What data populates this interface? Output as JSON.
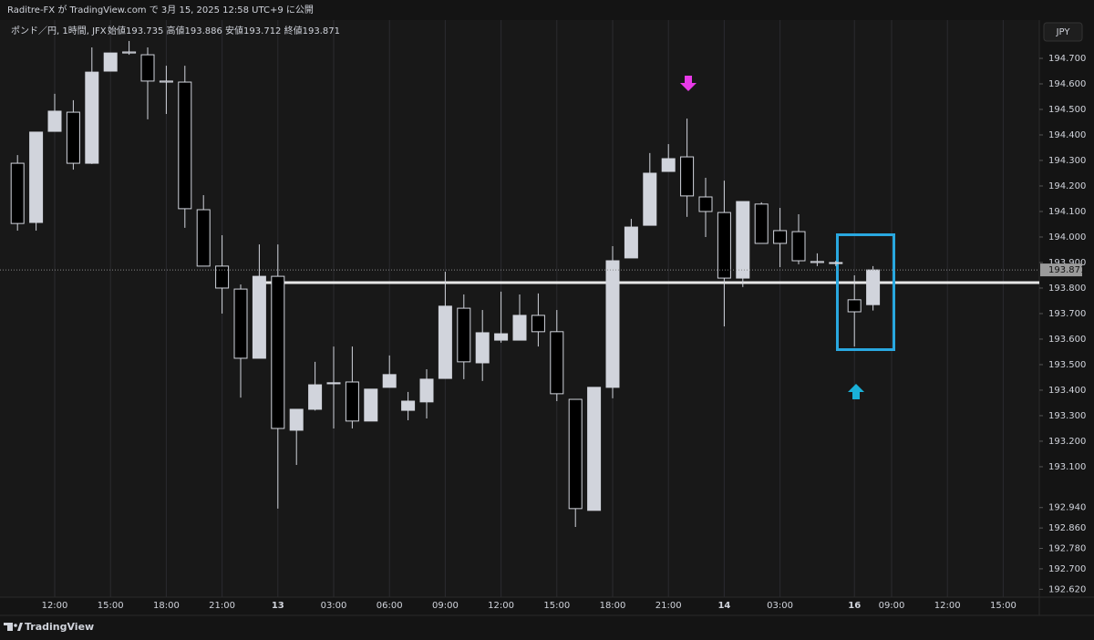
{
  "header": {
    "publisher": "Raditre-FX が TradingView.com で 3月 15, 2025 12:58 UTC+9 に公開"
  },
  "chart_data": {
    "type": "candlestick",
    "title": "ポンド／円, 1時間, JFX",
    "legend_ohlc": "始値193.735 高値193.886 安値193.712 終値193.871",
    "currency": "JPY",
    "up_color": "#d1d4dc",
    "down_color": "#000000",
    "categories": [
      null,
      null,
      "12:00",
      null,
      null,
      "15:00",
      null,
      null,
      "18:00",
      null,
      null,
      "21:00",
      null,
      null,
      "13",
      null,
      null,
      "03:00",
      null,
      null,
      "06:00",
      null,
      null,
      "09:00",
      null,
      null,
      "12:00",
      null,
      null,
      "15:00",
      null,
      null,
      "18:00",
      null,
      null,
      "21:00",
      null,
      null,
      "14",
      null,
      null,
      "03:00",
      null,
      null,
      null,
      "16",
      null,
      "09:00",
      null,
      null,
      "12:00",
      null,
      null,
      "15:00"
    ],
    "open": [
      194.289,
      194.057,
      194.414,
      194.489,
      194.289,
      194.65,
      194.725,
      194.714,
      194.611,
      194.607,
      194.107,
      193.886,
      193.796,
      193.525,
      193.846,
      193.243,
      193.325,
      193.425,
      193.432,
      193.279,
      193.411,
      193.321,
      193.354,
      193.446,
      193.721,
      193.507,
      193.596,
      193.596,
      193.693,
      193.629,
      193.364,
      192.929,
      193.411,
      193.918,
      194.046,
      194.257,
      194.314,
      194.157,
      194.096,
      193.839,
      194.129,
      194.025,
      194.021,
      193.904,
      193.896,
      193.754,
      193.735,
      null,
      null,
      null,
      null,
      null,
      null,
      null
    ],
    "high": [
      194.321,
      194.411,
      194.561,
      194.536,
      194.743,
      194.721,
      194.768,
      194.743,
      194.671,
      194.671,
      194.164,
      194.007,
      193.814,
      193.971,
      193.971,
      193.325,
      193.511,
      193.571,
      193.571,
      193.404,
      193.536,
      193.393,
      193.482,
      193.864,
      193.775,
      193.714,
      193.786,
      193.775,
      193.779,
      193.714,
      193.364,
      193.411,
      193.964,
      194.071,
      194.329,
      194.364,
      194.464,
      194.232,
      194.221,
      194.139,
      194.136,
      194.114,
      194.089,
      193.936,
      193.907,
      193.85,
      193.886,
      null,
      null,
      null,
      null,
      null,
      null,
      null
    ],
    "low": [
      194.025,
      194.025,
      194.414,
      194.264,
      194.286,
      194.65,
      194.714,
      194.461,
      194.482,
      194.036,
      193.886,
      193.7,
      193.371,
      193.525,
      192.936,
      193.107,
      193.32,
      193.25,
      193.25,
      193.279,
      193.411,
      193.282,
      193.289,
      193.446,
      193.443,
      193.436,
      193.586,
      193.596,
      193.571,
      193.357,
      192.864,
      192.929,
      193.368,
      193.918,
      194.046,
      194.257,
      194.079,
      194.0,
      193.65,
      193.804,
      193.975,
      193.882,
      193.893,
      193.886,
      193.886,
      193.571,
      193.712,
      null,
      null,
      null,
      null,
      null,
      null,
      null
    ],
    "close": [
      194.053,
      194.411,
      194.493,
      194.289,
      194.646,
      194.721,
      194.721,
      194.611,
      194.607,
      194.111,
      193.886,
      193.8,
      193.525,
      193.846,
      193.25,
      193.325,
      193.421,
      193.429,
      193.279,
      193.404,
      193.461,
      193.357,
      193.443,
      193.729,
      193.511,
      193.625,
      193.621,
      193.693,
      193.629,
      193.386,
      192.936,
      193.411,
      193.907,
      194.039,
      194.25,
      194.307,
      194.161,
      194.1,
      193.839,
      194.139,
      193.975,
      193.975,
      193.907,
      193.9,
      193.9,
      193.707,
      193.871,
      null,
      null,
      null,
      null,
      null,
      null,
      null
    ],
    "ylim": [
      192.589,
      194.85
    ],
    "yticks": [
      {
        "value": 194.7,
        "label": "194.700"
      },
      {
        "value": 194.6,
        "label": "194.600"
      },
      {
        "value": 194.5,
        "label": "194.500"
      },
      {
        "value": 194.4,
        "label": "194.400"
      },
      {
        "value": 194.3,
        "label": "194.300"
      },
      {
        "value": 194.2,
        "label": "194.200"
      },
      {
        "value": 194.1,
        "label": "194.100"
      },
      {
        "value": 194.0,
        "label": "194.000"
      },
      {
        "value": 193.9,
        "label": "193.900"
      },
      {
        "value": 193.8,
        "label": "193.800"
      },
      {
        "value": 193.7,
        "label": "193.700"
      },
      {
        "value": 193.6,
        "label": "193.600"
      },
      {
        "value": 193.5,
        "label": "193.500"
      },
      {
        "value": 193.4,
        "label": "193.400"
      },
      {
        "value": 193.3,
        "label": "193.300"
      },
      {
        "value": 193.2,
        "label": "193.200"
      },
      {
        "value": 193.1,
        "label": "193.100"
      },
      {
        "value": 192.94,
        "label": "192.940"
      },
      {
        "value": 192.86,
        "label": "192.860"
      },
      {
        "value": 192.78,
        "label": "192.780"
      },
      {
        "value": 192.7,
        "label": "192.700"
      },
      {
        "value": 192.62,
        "label": "192.620"
      }
    ],
    "last_price": {
      "value": 193.871,
      "label": "193.871"
    },
    "vertical_grid": true
  },
  "footer": {
    "brand": "TradingView"
  }
}
